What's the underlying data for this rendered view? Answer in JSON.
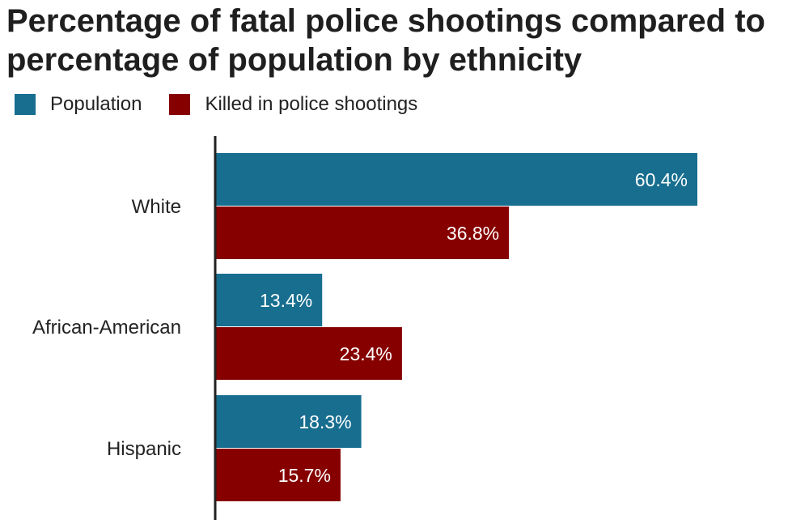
{
  "chart_data": {
    "type": "bar",
    "orientation": "horizontal",
    "title": "Percentage of fatal police shootings compared to percentage of population by ethnicity",
    "categories": [
      "White",
      "African-American",
      "Hispanic"
    ],
    "series": [
      {
        "name": "Population",
        "values": [
          60.4,
          13.4,
          18.3
        ],
        "labels": [
          "60.4%",
          "13.4%",
          "18.3%"
        ],
        "color": "#176e8f"
      },
      {
        "name": "Killed in police shootings",
        "values": [
          36.8,
          23.4,
          15.7
        ],
        "labels": [
          "36.8%",
          "23.4%",
          "15.7%"
        ],
        "color": "#860000"
      }
    ],
    "unit": "%",
    "xlim": [
      0,
      75
    ],
    "grid": false,
    "legend_position": "top-left",
    "axis_color": "#222222"
  }
}
